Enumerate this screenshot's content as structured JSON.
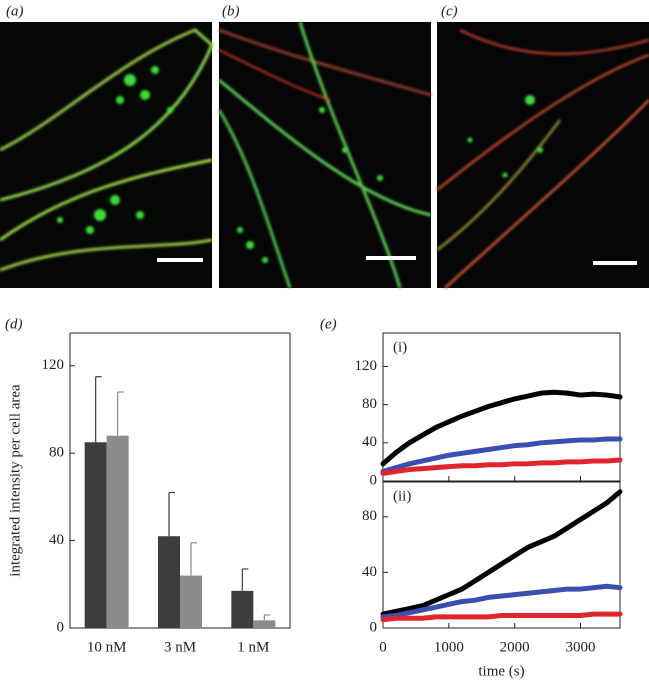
{
  "images": [
    {
      "label": "(a)"
    },
    {
      "label": "(b)"
    },
    {
      "label": "(c)"
    }
  ],
  "chart_data": [
    {
      "type": "bar",
      "panel_label": "(d)",
      "ylabel": "integrated intensity per cell area",
      "categories": [
        "10 nM",
        "3 nM",
        "1 nM"
      ],
      "series": [
        {
          "color": "#3d3d3d",
          "values": [
            85,
            42,
            17
          ],
          "errors": [
            30,
            20,
            10
          ]
        },
        {
          "color": "#8c8c8c",
          "values": [
            88,
            24,
            3.5
          ],
          "errors": [
            20,
            15,
            2.5
          ]
        }
      ],
      "ylim": [
        0,
        135
      ],
      "yticks": [
        0,
        40,
        80,
        120
      ]
    },
    {
      "type": "line",
      "panel_label": "(e)",
      "label": "(i)",
      "x": [
        0,
        200,
        400,
        600,
        800,
        1000,
        1200,
        1400,
        1600,
        1800,
        2000,
        2200,
        2400,
        2600,
        2800,
        3000,
        3200,
        3400,
        3600
      ],
      "series": [
        {
          "color": "#000000",
          "values": [
            18,
            30,
            40,
            48,
            56,
            62,
            68,
            73,
            78,
            82,
            86,
            89,
            92,
            93,
            92,
            90,
            91,
            90,
            88
          ]
        },
        {
          "color": "#3b4fb0",
          "values": [
            10,
            14,
            18,
            21,
            24,
            27,
            29,
            31,
            33,
            35,
            37,
            38,
            40,
            41,
            42,
            43,
            43,
            44,
            44
          ]
        },
        {
          "color": "#e0252e",
          "values": [
            8,
            10,
            12,
            13,
            14,
            15,
            16,
            16,
            17,
            17,
            18,
            18,
            19,
            19,
            20,
            20,
            21,
            21,
            22
          ]
        }
      ],
      "xlim": [
        0,
        3600
      ],
      "xticks": [
        0,
        1000,
        2000,
        3000
      ],
      "ylim": [
        0,
        155
      ],
      "yticks": [
        0,
        40,
        80,
        120
      ]
    },
    {
      "type": "line",
      "label": "(ii)",
      "xlabel": "time (s)",
      "x": [
        0,
        200,
        400,
        600,
        800,
        1000,
        1200,
        1400,
        1600,
        1800,
        2000,
        2200,
        2400,
        2600,
        2800,
        3000,
        3200,
        3400,
        3600
      ],
      "series": [
        {
          "color": "#000000",
          "values": [
            10,
            12,
            14,
            16,
            20,
            24,
            28,
            34,
            40,
            46,
            52,
            58,
            62,
            66,
            72,
            78,
            84,
            90,
            98
          ]
        },
        {
          "color": "#3b4fb0",
          "values": [
            8,
            9,
            11,
            13,
            15,
            17,
            19,
            20,
            22,
            23,
            24,
            25,
            26,
            27,
            28,
            28,
            29,
            30,
            29
          ]
        },
        {
          "color": "#e0252e",
          "values": [
            6,
            7,
            7,
            7,
            8,
            8,
            8,
            8,
            8,
            9,
            9,
            9,
            9,
            9,
            9,
            9,
            10,
            10,
            10
          ]
        }
      ],
      "xlim": [
        0,
        3600
      ],
      "xticks": [
        0,
        1000,
        2000,
        3000
      ],
      "ylim": [
        0,
        105
      ],
      "yticks": [
        0,
        40,
        80
      ]
    }
  ]
}
